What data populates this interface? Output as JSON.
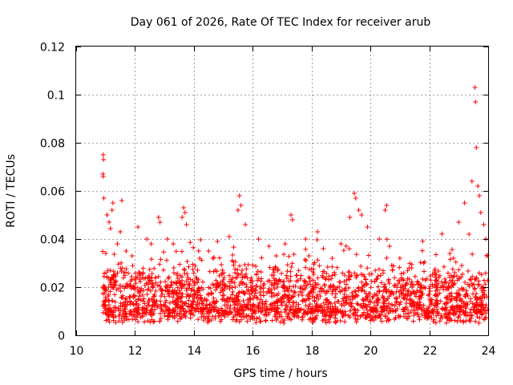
{
  "chart_data": {
    "type": "scatter",
    "title": "Day 061 of 2026, Rate Of TEC Index for receiver arub",
    "xlabel": "GPS time / hours",
    "ylabel": "ROTI / TECUs",
    "xlim": [
      10,
      24
    ],
    "ylim": [
      0,
      0.12
    ],
    "x_ticks": [
      10,
      12,
      14,
      16,
      18,
      20,
      22,
      24
    ],
    "x_tick_labels": [
      "10",
      "12",
      "14",
      "16",
      "18",
      "20",
      "22",
      "24"
    ],
    "y_ticks": [
      0,
      0.02,
      0.04,
      0.06,
      0.08,
      0.1,
      0.12
    ],
    "y_tick_labels": [
      "0",
      "0.02",
      "0.04",
      "0.06",
      "0.08",
      "0.1",
      "0.12"
    ],
    "grid": true,
    "marker": "+",
    "series_color": "#ff0000",
    "series": [
      {
        "name": "ROTI",
        "points": [
          [
            10.92,
            0.075
          ],
          [
            10.93,
            0.073
          ],
          [
            10.91,
            0.067
          ],
          [
            10.92,
            0.066
          ],
          [
            10.94,
            0.057
          ],
          [
            11.05,
            0.05
          ],
          [
            11.12,
            0.047
          ],
          [
            11.25,
            0.055
          ],
          [
            11.22,
            0.052
          ],
          [
            11.55,
            0.056
          ],
          [
            11.5,
            0.043
          ],
          [
            11.4,
            0.038
          ],
          [
            11.7,
            0.035
          ],
          [
            11.9,
            0.033
          ],
          [
            12.1,
            0.045
          ],
          [
            12.4,
            0.04
          ],
          [
            12.55,
            0.038
          ],
          [
            12.8,
            0.049
          ],
          [
            12.85,
            0.047
          ],
          [
            13.1,
            0.04
          ],
          [
            13.3,
            0.038
          ],
          [
            13.6,
            0.049
          ],
          [
            13.65,
            0.053
          ],
          [
            13.7,
            0.051
          ],
          [
            13.75,
            0.046
          ],
          [
            14.2,
            0.032
          ],
          [
            14.5,
            0.035
          ],
          [
            14.8,
            0.039
          ],
          [
            15.2,
            0.041
          ],
          [
            15.5,
            0.052
          ],
          [
            15.55,
            0.058
          ],
          [
            15.6,
            0.054
          ],
          [
            15.75,
            0.046
          ],
          [
            16.2,
            0.04
          ],
          [
            16.55,
            0.037
          ],
          [
            16.8,
            0.033
          ],
          [
            17.1,
            0.038
          ],
          [
            17.3,
            0.05
          ],
          [
            17.35,
            0.048
          ],
          [
            17.8,
            0.04
          ],
          [
            18.2,
            0.043
          ],
          [
            18.4,
            0.036
          ],
          [
            18.7,
            0.032
          ],
          [
            19.0,
            0.038
          ],
          [
            19.3,
            0.049
          ],
          [
            19.45,
            0.059
          ],
          [
            19.5,
            0.057
          ],
          [
            19.6,
            0.052
          ],
          [
            19.7,
            0.05
          ],
          [
            19.9,
            0.045
          ],
          [
            20.3,
            0.04
          ],
          [
            20.5,
            0.052
          ],
          [
            20.55,
            0.054
          ],
          [
            20.65,
            0.037
          ],
          [
            21.0,
            0.032
          ],
          [
            21.4,
            0.028
          ],
          [
            21.8,
            0.03
          ],
          [
            22.2,
            0.026
          ],
          [
            22.7,
            0.034
          ],
          [
            23.0,
            0.047
          ],
          [
            23.2,
            0.055
          ],
          [
            23.35,
            0.042
          ],
          [
            23.45,
            0.064
          ],
          [
            23.55,
            0.103
          ],
          [
            23.57,
            0.097
          ],
          [
            23.6,
            0.078
          ],
          [
            23.65,
            0.062
          ],
          [
            23.7,
            0.058
          ],
          [
            23.75,
            0.051
          ],
          [
            23.85,
            0.046
          ],
          [
            23.92,
            0.04
          ],
          [
            23.95,
            0.033
          ]
        ]
      }
    ]
  }
}
